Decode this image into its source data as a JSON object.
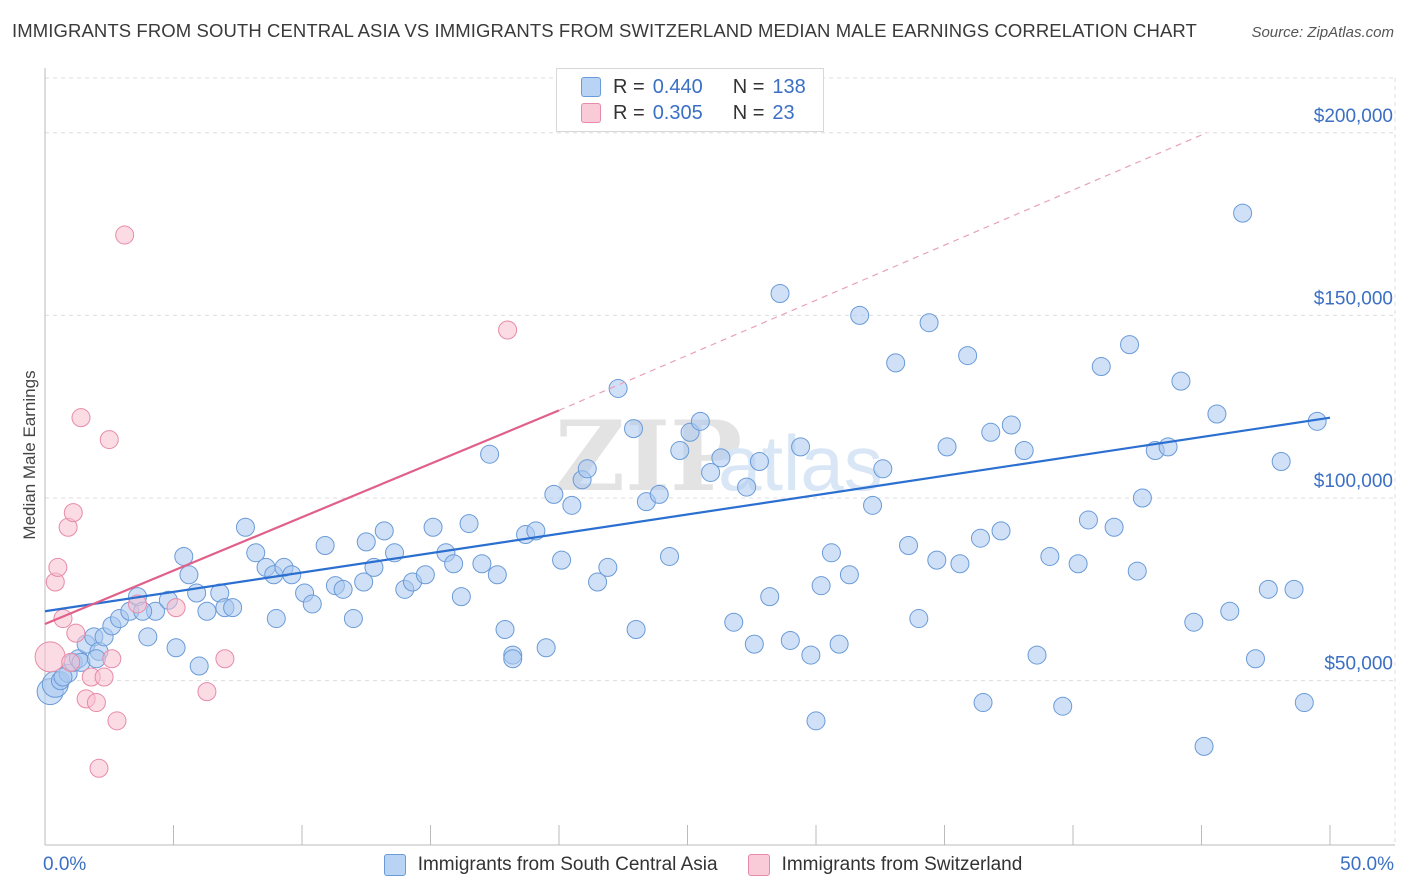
{
  "title": "IMMIGRANTS FROM SOUTH CENTRAL ASIA VS IMMIGRANTS FROM SWITZERLAND MEDIAN MALE EARNINGS CORRELATION CHART",
  "source": "Source: ZipAtlas.com",
  "watermark": {
    "zip": "ZIP",
    "atlas": "atlas"
  },
  "colors": {
    "blue_fill": "#a9c8f0",
    "blue_stroke": "#6a9bd8",
    "blue_line": "#2b6fd0",
    "pink_fill": "#f7bfd0",
    "pink_stroke": "#e88aa8",
    "pink_line": "#e0608a",
    "axis_text": "#3b6fc4",
    "grid": "#dddddd"
  },
  "legend": {
    "r_label": "R =",
    "n_label": "N =",
    "series": [
      {
        "r": "0.440",
        "n": "138"
      },
      {
        "r": "0.305",
        "n": "23"
      }
    ]
  },
  "chart_data": {
    "type": "scatter",
    "title": "IMMIGRANTS FROM SOUTH CENTRAL ASIA VS IMMIGRANTS FROM SWITZERLAND MEDIAN MALE EARNINGS CORRELATION CHART",
    "xlabel": "",
    "ylabel": "Median Male Earnings",
    "xlim": [
      0,
      50
    ],
    "ylim": [
      5000,
      215000
    ],
    "x_tick_labels": [
      "0.0%",
      "50.0%"
    ],
    "y_ticks": [
      50000,
      100000,
      150000,
      200000
    ],
    "y_tick_labels": [
      "$50,000",
      "$100,000",
      "$150,000",
      "$200,000"
    ],
    "grid": true,
    "series": [
      {
        "name": "Immigrants from South Central Asia",
        "trend": {
          "x": [
            0,
            50
          ],
          "y": [
            69000,
            122000
          ]
        },
        "points": [
          [
            0.2,
            47000
          ],
          [
            0.4,
            49000
          ],
          [
            0.6,
            50000
          ],
          [
            0.9,
            52000
          ],
          [
            1.1,
            55000
          ],
          [
            1.3,
            56000
          ],
          [
            0.7,
            51000
          ],
          [
            1.6,
            60000
          ],
          [
            1.9,
            62000
          ],
          [
            2.1,
            58000
          ],
          [
            2.3,
            62000
          ],
          [
            2.6,
            65000
          ],
          [
            2.9,
            67000
          ],
          [
            3.3,
            69000
          ],
          [
            3.6,
            73000
          ],
          [
            4.0,
            62000
          ],
          [
            4.3,
            69000
          ],
          [
            4.8,
            72000
          ],
          [
            5.1,
            59000
          ],
          [
            5.4,
            84000
          ],
          [
            5.6,
            79000
          ],
          [
            5.9,
            74000
          ],
          [
            6.3,
            69000
          ],
          [
            6.8,
            74000
          ],
          [
            7.0,
            70000
          ],
          [
            7.3,
            70000
          ],
          [
            7.8,
            92000
          ],
          [
            8.2,
            85000
          ],
          [
            8.6,
            81000
          ],
          [
            8.9,
            79000
          ],
          [
            9.3,
            81000
          ],
          [
            9.6,
            79000
          ],
          [
            10.1,
            74000
          ],
          [
            10.4,
            71000
          ],
          [
            10.9,
            87000
          ],
          [
            11.3,
            76000
          ],
          [
            11.6,
            75000
          ],
          [
            12.0,
            67000
          ],
          [
            12.4,
            77000
          ],
          [
            12.8,
            81000
          ],
          [
            13.2,
            91000
          ],
          [
            13.6,
            85000
          ],
          [
            14.0,
            75000
          ],
          [
            14.3,
            77000
          ],
          [
            14.8,
            79000
          ],
          [
            15.1,
            92000
          ],
          [
            15.6,
            85000
          ],
          [
            15.9,
            82000
          ],
          [
            16.2,
            73000
          ],
          [
            16.5,
            93000
          ],
          [
            17.0,
            82000
          ],
          [
            17.3,
            112000
          ],
          [
            17.6,
            79000
          ],
          [
            17.9,
            64000
          ],
          [
            18.2,
            57000
          ],
          [
            18.7,
            90000
          ],
          [
            19.1,
            91000
          ],
          [
            19.5,
            59000
          ],
          [
            19.8,
            101000
          ],
          [
            20.1,
            83000
          ],
          [
            20.5,
            98000
          ],
          [
            20.9,
            105000
          ],
          [
            21.1,
            108000
          ],
          [
            21.5,
            77000
          ],
          [
            21.9,
            81000
          ],
          [
            22.3,
            130000
          ],
          [
            22.9,
            119000
          ],
          [
            23.0,
            64000
          ],
          [
            23.4,
            99000
          ],
          [
            23.9,
            101000
          ],
          [
            24.3,
            84000
          ],
          [
            24.7,
            113000
          ],
          [
            25.1,
            118000
          ],
          [
            25.5,
            121000
          ],
          [
            25.9,
            107000
          ],
          [
            26.3,
            111000
          ],
          [
            26.8,
            66000
          ],
          [
            27.3,
            103000
          ],
          [
            27.8,
            110000
          ],
          [
            28.2,
            73000
          ],
          [
            28.6,
            156000
          ],
          [
            29.0,
            61000
          ],
          [
            29.4,
            114000
          ],
          [
            29.8,
            57000
          ],
          [
            30.2,
            76000
          ],
          [
            30.6,
            85000
          ],
          [
            30.9,
            60000
          ],
          [
            31.3,
            79000
          ],
          [
            31.7,
            150000
          ],
          [
            32.2,
            98000
          ],
          [
            32.6,
            108000
          ],
          [
            33.1,
            137000
          ],
          [
            33.6,
            87000
          ],
          [
            34.0,
            67000
          ],
          [
            34.4,
            148000
          ],
          [
            34.7,
            83000
          ],
          [
            35.1,
            114000
          ],
          [
            35.6,
            82000
          ],
          [
            35.9,
            139000
          ],
          [
            36.4,
            89000
          ],
          [
            36.8,
            118000
          ],
          [
            37.2,
            91000
          ],
          [
            37.6,
            120000
          ],
          [
            38.1,
            113000
          ],
          [
            38.6,
            57000
          ],
          [
            39.1,
            84000
          ],
          [
            39.6,
            43000
          ],
          [
            40.2,
            82000
          ],
          [
            40.6,
            94000
          ],
          [
            41.1,
            136000
          ],
          [
            41.6,
            92000
          ],
          [
            42.2,
            142000
          ],
          [
            42.7,
            100000
          ],
          [
            43.2,
            113000
          ],
          [
            43.7,
            114000
          ],
          [
            44.2,
            132000
          ],
          [
            44.7,
            66000
          ],
          [
            45.1,
            32000
          ],
          [
            45.6,
            123000
          ],
          [
            46.1,
            69000
          ],
          [
            46.6,
            178000
          ],
          [
            47.1,
            56000
          ],
          [
            47.6,
            75000
          ],
          [
            48.1,
            110000
          ],
          [
            48.6,
            75000
          ],
          [
            49.0,
            44000
          ],
          [
            49.5,
            121000
          ],
          [
            18.2,
            56000
          ],
          [
            6.0,
            54000
          ],
          [
            3.8,
            69000
          ],
          [
            9.0,
            67000
          ],
          [
            1.4,
            55000
          ],
          [
            2.0,
            56000
          ],
          [
            12.5,
            88000
          ],
          [
            27.6,
            60000
          ],
          [
            36.5,
            44000
          ],
          [
            42.5,
            80000
          ],
          [
            30.0,
            39000
          ]
        ]
      },
      {
        "name": "Immigrants from Switzerland",
        "trend": {
          "x": [
            0,
            20
          ],
          "y": [
            65500,
            124000
          ]
        },
        "trend_dashed": {
          "x": [
            20,
            45.2
          ],
          "y": [
            124000,
            200000
          ]
        },
        "points": [
          [
            0.2,
            56500
          ],
          [
            0.4,
            77000
          ],
          [
            0.5,
            81000
          ],
          [
            0.7,
            67000
          ],
          [
            0.9,
            92000
          ],
          [
            1.0,
            55000
          ],
          [
            1.1,
            96000
          ],
          [
            1.2,
            63000
          ],
          [
            1.4,
            122000
          ],
          [
            1.6,
            45000
          ],
          [
            1.8,
            51000
          ],
          [
            2.0,
            44000
          ],
          [
            2.1,
            26000
          ],
          [
            2.3,
            51000
          ],
          [
            2.5,
            116000
          ],
          [
            2.6,
            56000
          ],
          [
            2.8,
            39000
          ],
          [
            3.1,
            172000
          ],
          [
            3.6,
            71000
          ],
          [
            5.1,
            70000
          ],
          [
            6.3,
            47000
          ],
          [
            7.0,
            56000
          ],
          [
            18.0,
            146000
          ]
        ]
      }
    ]
  }
}
